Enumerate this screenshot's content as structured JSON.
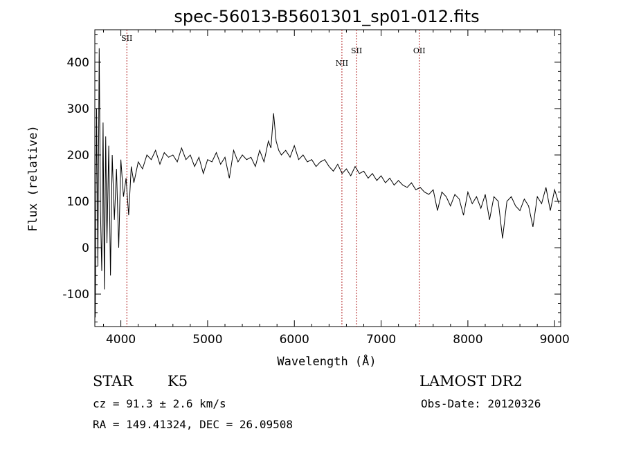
{
  "chart_data": {
    "type": "line",
    "title": "spec-56013-B5601301_sp01-012.fits",
    "xlabel": "Wavelength (Å)",
    "ylabel": "Flux (relative)",
    "xlim": [
      3700,
      9070
    ],
    "ylim": [
      -170,
      470
    ],
    "x_ticks": [
      4000,
      5000,
      6000,
      7000,
      8000,
      9000
    ],
    "y_ticks": [
      -100,
      0,
      100,
      200,
      300,
      400
    ],
    "grid": false,
    "line_color": "#000000",
    "marker_color": "#b22222",
    "emission_markers": [
      {
        "label": "SII",
        "x": 4069,
        "label_level": "top"
      },
      {
        "label": "NII",
        "x": 6548,
        "label_level": "low"
      },
      {
        "label": "SII",
        "x": 6717,
        "label_level": "mid"
      },
      {
        "label": "OII",
        "x": 7440,
        "label_level": "mid"
      }
    ],
    "series": [
      {
        "x": [
          3705,
          3720,
          3735,
          3750,
          3765,
          3780,
          3795,
          3810,
          3825,
          3840,
          3860,
          3880,
          3900,
          3925,
          3950,
          3975,
          4000,
          4030,
          4060,
          4090,
          4120,
          4150,
          4200,
          4250,
          4300,
          4350,
          4400,
          4450,
          4500,
          4550,
          4600,
          4650,
          4700,
          4750,
          4800,
          4850,
          4900,
          4950,
          5000,
          5050,
          5100,
          5150,
          5200,
          5250,
          5300,
          5350,
          5400,
          5450,
          5500,
          5550,
          5600,
          5650,
          5700,
          5730,
          5760,
          5790,
          5820,
          5850,
          5900,
          5950,
          6000,
          6050,
          6100,
          6150,
          6200,
          6250,
          6300,
          6350,
          6400,
          6450,
          6500,
          6550,
          6600,
          6650,
          6700,
          6750,
          6800,
          6850,
          6900,
          6950,
          7000,
          7050,
          7100,
          7150,
          7200,
          7250,
          7300,
          7350,
          7400,
          7450,
          7500,
          7550,
          7600,
          7650,
          7700,
          7750,
          7800,
          7850,
          7900,
          7950,
          8000,
          8050,
          8100,
          8150,
          8200,
          8250,
          8300,
          8350,
          8400,
          8450,
          8500,
          8550,
          8600,
          8650,
          8700,
          8750,
          8800,
          8850,
          8900,
          8950,
          9000,
          9050
        ],
        "y": [
          -150,
          300,
          -40,
          430,
          80,
          -50,
          270,
          -90,
          240,
          10,
          220,
          -60,
          200,
          60,
          170,
          0,
          190,
          110,
          150,
          70,
          175,
          140,
          185,
          170,
          200,
          190,
          210,
          180,
          205,
          195,
          200,
          185,
          215,
          190,
          200,
          175,
          195,
          160,
          190,
          185,
          205,
          180,
          195,
          150,
          210,
          185,
          200,
          190,
          195,
          175,
          210,
          185,
          230,
          215,
          290,
          230,
          210,
          200,
          210,
          195,
          220,
          190,
          200,
          185,
          190,
          175,
          185,
          190,
          175,
          165,
          180,
          160,
          170,
          155,
          175,
          160,
          165,
          150,
          160,
          145,
          155,
          140,
          150,
          135,
          145,
          135,
          130,
          140,
          125,
          130,
          120,
          115,
          125,
          80,
          120,
          110,
          90,
          115,
          105,
          70,
          120,
          95,
          110,
          85,
          115,
          60,
          110,
          100,
          20,
          100,
          110,
          90,
          80,
          105,
          90,
          45,
          110,
          95,
          130,
          80,
          125,
          95
        ]
      }
    ]
  },
  "info": {
    "object_class": "STAR",
    "subclass": "K5",
    "survey": "LAMOST DR2",
    "redshift": "cz = 91.3 ± 2.6 km/s",
    "obs_date": "Obs-Date: 20120326",
    "coords": "RA = 149.41324, DEC =  26.09508"
  }
}
